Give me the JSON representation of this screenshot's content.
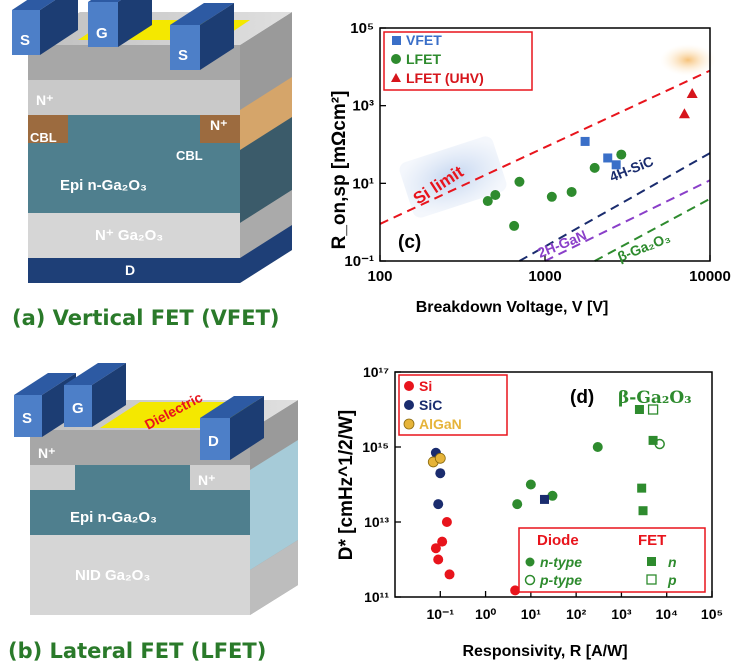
{
  "panel_a": {
    "caption": "(a) Vertical FET (VFET)",
    "labels": {
      "s_left": "S",
      "g": "G",
      "s_right": "S",
      "n_left": "N⁺",
      "n_right": "N⁺",
      "cbl_left": "CBL",
      "cbl_right": "CBL",
      "epi": "Epi n-Ga₂O₃",
      "substrate": "N⁺ Ga₂O₃",
      "drain": "D"
    }
  },
  "panel_b": {
    "caption": "(b) Lateral FET (LFET)",
    "labels": {
      "s": "S",
      "g": "G",
      "d": "D",
      "dielectric": "Dielectric",
      "n_left": "N⁺",
      "n_right": "N⁺",
      "epi": "Epi n-Ga₂O₃",
      "substrate": "NID Ga₂O₃"
    }
  },
  "colors": {
    "vfet": "#3a6fc8",
    "lfet": "#2e8b2e",
    "lfet_uhv": "#d6151c",
    "si": "#e8141c",
    "sic": "#1a2c6e",
    "algan": "#e6b43a",
    "si_limit": "#e8141c",
    "sic_limit": "#1a2c6e",
    "gan_limit": "#8a3fc9",
    "ga2o3_limit": "#2e8b2e"
  },
  "chart_data": [
    {
      "type": "scatter",
      "panel_label": "(c)",
      "xlabel": "Breakdown Voltage, V [V]",
      "ylabel": "R_on,sp [mΩcm²]",
      "xscale": "log",
      "yscale": "log",
      "xlim": [
        100,
        10000
      ],
      "ylim": [
        0.1,
        100000
      ],
      "xticks": [
        "100",
        "1000",
        "10000"
      ],
      "yticks": [
        "10⁻¹",
        "10¹",
        "10³",
        "10⁵"
      ],
      "legend_position": "top-left",
      "series": [
        {
          "name": "VFET",
          "marker": "square",
          "points": [
            [
              1750,
              120
            ],
            [
              2400,
              45
            ],
            [
              2700,
              30
            ]
          ]
        },
        {
          "name": "LFET",
          "marker": "circle",
          "points": [
            [
              450,
              3.5
            ],
            [
              500,
              5
            ],
            [
              650,
              0.8
            ],
            [
              700,
              11
            ],
            [
              1100,
              4.5
            ],
            [
              1450,
              6
            ],
            [
              2000,
              25
            ],
            [
              2900,
              55
            ]
          ]
        },
        {
          "name": "LFET (UHV)",
          "marker": "triangle",
          "points": [
            [
              7000,
              600
            ],
            [
              7800,
              2000
            ]
          ]
        }
      ],
      "limit_lines": [
        {
          "label": "Si limit",
          "points": [
            [
              100,
              0.9
            ],
            [
              10000,
              8000
            ]
          ]
        },
        {
          "label": "4H-SiC",
          "points": [
            [
              700,
              0.1
            ],
            [
              10000,
              60
            ]
          ]
        },
        {
          "label": "2H-GaN",
          "points": [
            [
              1000,
              0.1
            ],
            [
              10000,
              12
            ]
          ]
        },
        {
          "label": "β-Ga₂O₃",
          "points": [
            [
              2000,
              0.1
            ],
            [
              10000,
              4
            ]
          ]
        }
      ]
    },
    {
      "type": "scatter",
      "panel_label": "(d)",
      "annotation": "β-Ga₂O₃",
      "xlabel": "Responsivity, R [A/W]",
      "ylabel": "D* [cmHz^1/2/W]",
      "xscale": "log",
      "yscale": "log",
      "xlim": [
        0.01,
        100000
      ],
      "ylim": [
        100000000000.0,
        1e+17
      ],
      "xticks": [
        "10⁻¹",
        "10⁰",
        "10¹",
        "10²",
        "10³",
        "10⁴",
        "10⁵"
      ],
      "yticks": [
        "10¹¹",
        "10¹³",
        "10¹⁵",
        "10¹⁷"
      ],
      "legend_position": "top-left",
      "series": [
        {
          "name": "Si",
          "marker": "circle",
          "points": [
            [
              0.09,
              1000000000000.0
            ],
            [
              0.11,
              3000000000000.0
            ],
            [
              0.08,
              2000000000000.0
            ],
            [
              0.14,
              10000000000000.0
            ],
            [
              0.16,
              400000000000.0
            ],
            [
              4.5,
              150000000000.0
            ]
          ]
        },
        {
          "name": "SiC",
          "marker": "circle",
          "points": [
            [
              0.08,
              700000000000000.0
            ],
            [
              0.09,
              30000000000000.0
            ],
            [
              0.1,
              200000000000000.0
            ]
          ]
        },
        {
          "name": "AlGaN",
          "marker": "circle",
          "points": [
            [
              0.07,
              400000000000000.0
            ],
            [
              0.1,
              500000000000000.0
            ]
          ]
        },
        {
          "name": "n-type Diode",
          "marker": "circle",
          "points": [
            [
              5,
              30000000000000.0
            ],
            [
              10,
              100000000000000.0
            ],
            [
              30,
              50000000000000.0
            ],
            [
              300,
              1000000000000000.0
            ]
          ]
        },
        {
          "name": "p-type Diode",
          "marker": "circle-open",
          "points": [
            [
              7000,
              1200000000000000.0
            ]
          ]
        },
        {
          "name": "n FET",
          "marker": "square",
          "points": [
            [
              20,
              40000000000000.0
            ],
            [
              2500,
              1e+16
            ],
            [
              2800,
              80000000000000.0
            ],
            [
              3000,
              20000000000000.0
            ],
            [
              5000,
              1500000000000000.0
            ]
          ]
        },
        {
          "name": "p FET",
          "marker": "square-open",
          "points": [
            [
              5000,
              1e+16
            ]
          ]
        }
      ],
      "legend2": {
        "diode_title": "Diode",
        "fet_title": "FET",
        "n_type": "n-type",
        "p_type": "p-type",
        "n": "n",
        "p": "p"
      }
    }
  ]
}
